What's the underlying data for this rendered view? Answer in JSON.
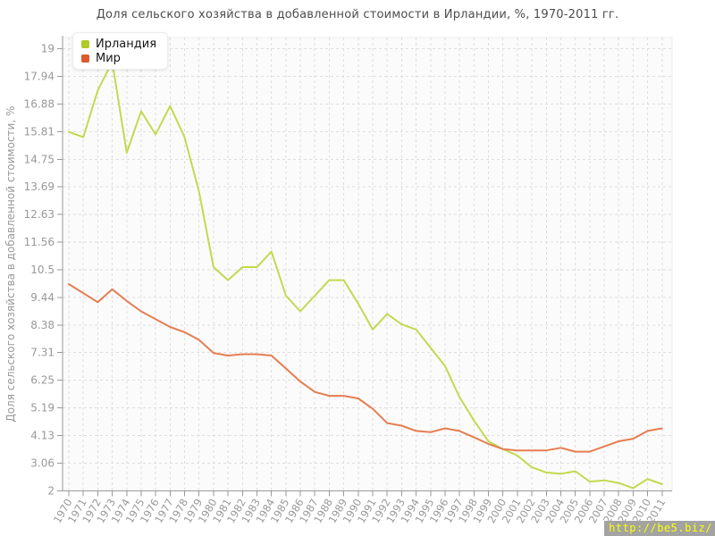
{
  "title": "Доля сельского хозяйства в добавленной стоимости в Ирландии, %, 1970-2011 гг.",
  "watermark": "http://be5.biz/",
  "colors": {
    "ireland_line": "#c3d94f",
    "ireland_marker": "#aecb26",
    "world_line": "#e57e50",
    "world_marker": "#dd5b2b",
    "grid": "#dedede",
    "axis": "#9a9a9a",
    "label": "#999999",
    "plot_bg": "#fbfbfb",
    "plot_border": "#ebebeb",
    "title_color": "#4d4d4d",
    "watermark_bg": "#a3a3a3",
    "watermark_fg": "#ffff00"
  },
  "y_axis": {
    "title": "Доля сельского хозяйства в добавленной стоимости, %",
    "tick_labels": [
      "19",
      "17.94",
      "16.88",
      "15.81",
      "14.75",
      "13.69",
      "12.63",
      "11.56",
      "10.5",
      "9.44",
      "8.38",
      "7.31",
      "6.25",
      "5.19",
      "4.13",
      "3.06",
      "2"
    ],
    "min": 2,
    "max": 19
  },
  "chart_data": {
    "type": "line",
    "title": "Доля сельского хозяйства в добавленной стоимости в Ирландии, %, 1970-2011 гг.",
    "xlabel": "",
    "ylabel": "Доля сельского хозяйства в добавленной стоимости, %",
    "ylim": [
      2,
      19
    ],
    "y_tick_step": 1.0625,
    "grid": true,
    "legend_position": "top-left",
    "categories": [
      "1970",
      "1971",
      "1972",
      "1973",
      "1974",
      "1975",
      "1976",
      "1977",
      "1978",
      "1979",
      "1980",
      "1981",
      "1982",
      "1983",
      "1984",
      "1985",
      "1986",
      "1987",
      "1988",
      "1989",
      "1990",
      "1991",
      "1992",
      "1993",
      "1994",
      "1995",
      "1996",
      "1997",
      "1998",
      "1999",
      "2000",
      "2001",
      "2002",
      "2003",
      "2004",
      "2005",
      "2006",
      "2007",
      "2008",
      "2009",
      "2010",
      "2011"
    ],
    "series": [
      {
        "name": "Ирландия",
        "values": [
          15.8,
          15.6,
          17.4,
          18.5,
          15.0,
          16.6,
          15.7,
          16.8,
          15.6,
          13.5,
          10.6,
          10.1,
          10.6,
          10.6,
          11.2,
          9.5,
          8.9,
          9.5,
          10.1,
          10.1,
          9.2,
          8.2,
          8.8,
          8.4,
          8.2,
          7.5,
          6.8,
          5.6,
          4.7,
          3.9,
          3.6,
          3.35,
          2.9,
          2.7,
          2.65,
          2.75,
          2.35,
          2.4,
          2.3,
          2.1,
          2.45,
          2.25
        ]
      },
      {
        "name": "Мир",
        "values": [
          9.95,
          9.6,
          9.25,
          9.75,
          9.3,
          8.9,
          8.6,
          8.3,
          8.1,
          7.8,
          7.3,
          7.2,
          7.25,
          7.25,
          7.2,
          6.7,
          6.2,
          5.8,
          5.65,
          5.65,
          5.55,
          5.15,
          4.6,
          4.5,
          4.3,
          4.25,
          4.4,
          4.3,
          4.05,
          3.8,
          3.6,
          3.55,
          3.55,
          3.55,
          3.65,
          3.5,
          3.5,
          3.7,
          3.9,
          4.0,
          4.3,
          4.4
        ]
      }
    ]
  }
}
